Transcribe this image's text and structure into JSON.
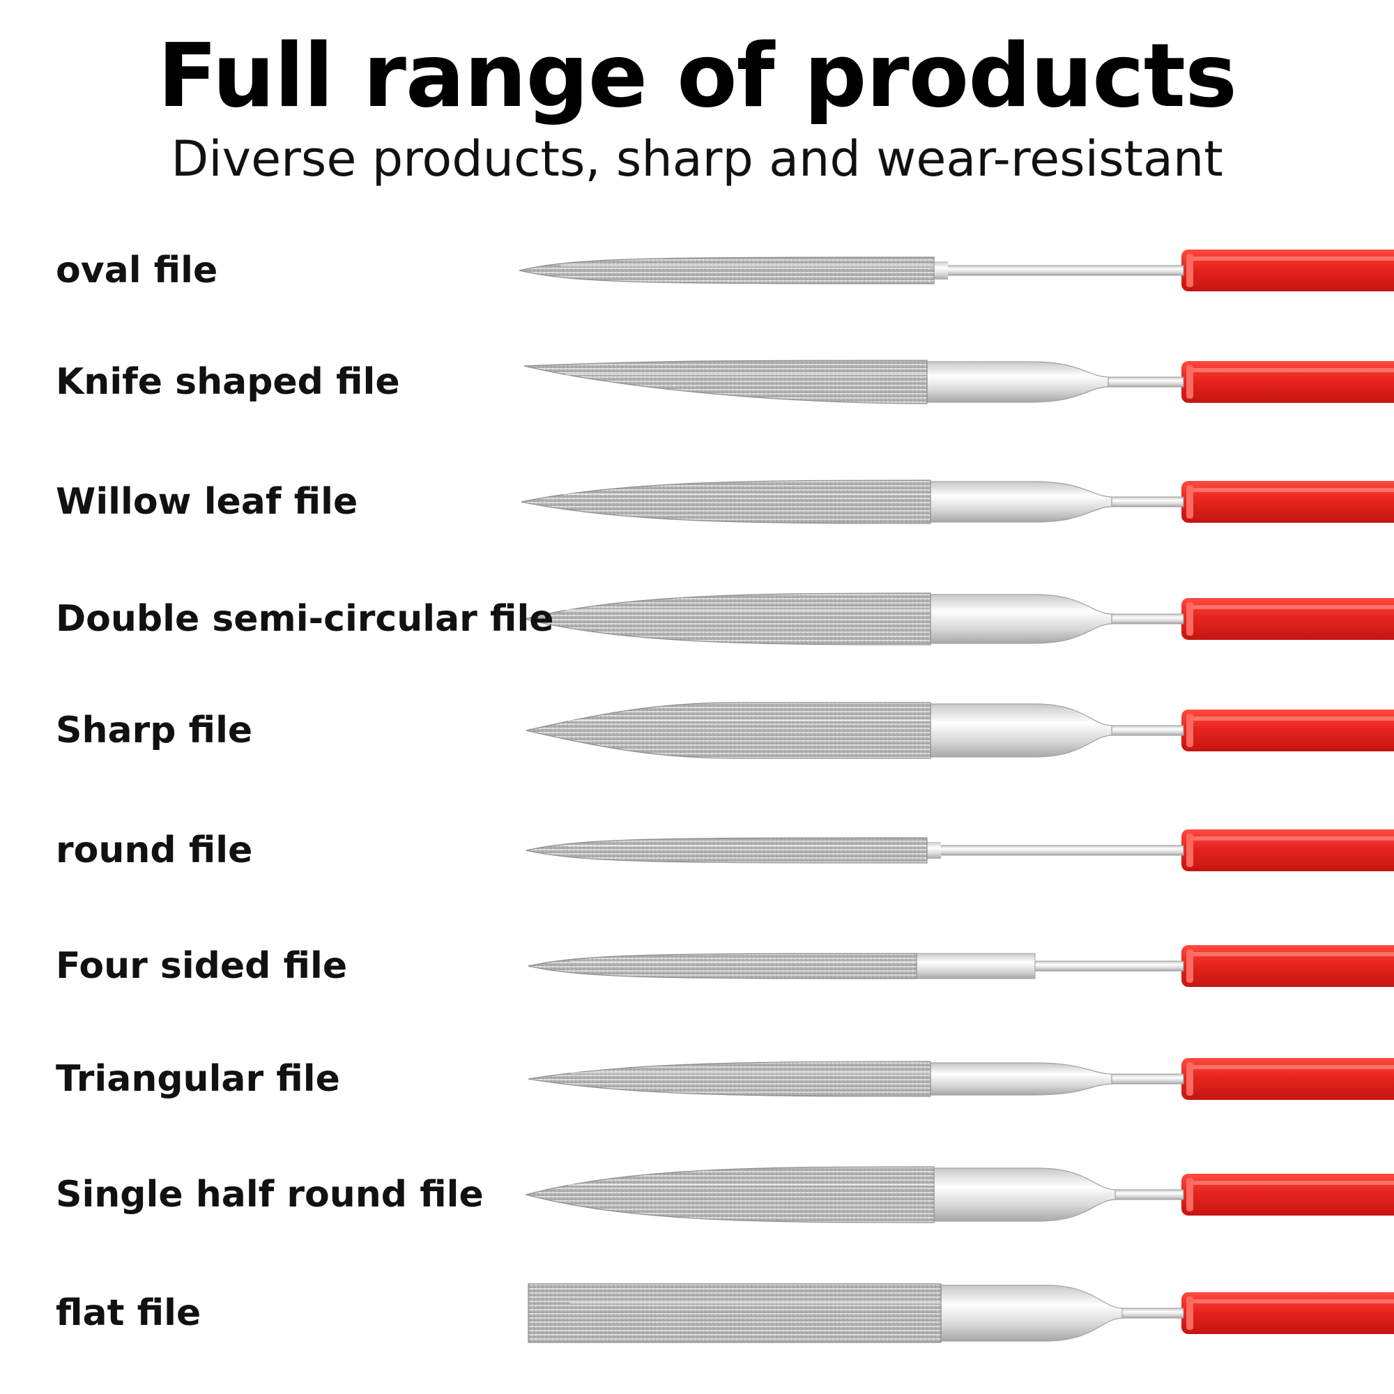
{
  "header": {
    "title": "Full range of products",
    "subtitle": "Diverse products, sharp and wear-resistant"
  },
  "colors": {
    "handle": "#e8241f",
    "metal": "#d6d6d6",
    "coating": "#bdbdbd"
  },
  "files": [
    {
      "name": "oval file",
      "icon": "oval-file-icon"
    },
    {
      "name": "Knife shaped file",
      "icon": "knife-shaped-file-icon"
    },
    {
      "name": "Willow leaf file",
      "icon": "willow-leaf-file-icon"
    },
    {
      "name": "Double semi-circular file",
      "icon": "double-semi-circular-file-icon"
    },
    {
      "name": "Sharp file",
      "icon": "sharp-file-icon"
    },
    {
      "name": "round file",
      "icon": "round-file-icon"
    },
    {
      "name": "Four sided file",
      "icon": "four-sided-file-icon"
    },
    {
      "name": "Triangular file",
      "icon": "triangular-file-icon"
    },
    {
      "name": "Single half round file",
      "icon": "single-half-round-file-icon"
    },
    {
      "name": "flat file",
      "icon": "flat-file-icon"
    }
  ]
}
